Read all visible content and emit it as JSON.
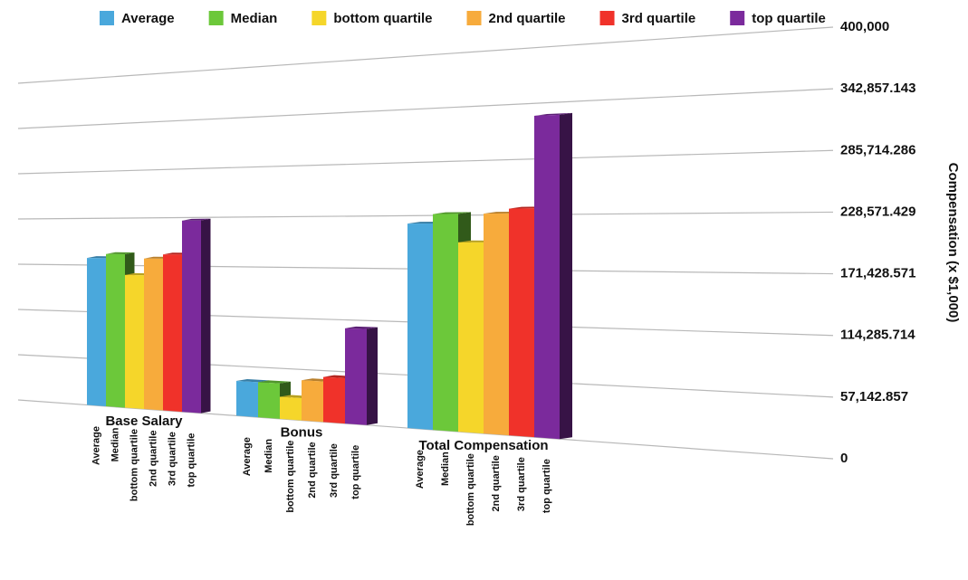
{
  "chart_data": {
    "type": "bar",
    "y_axis_label": "Compensation (x $1,000)",
    "categories": [
      "Base Salary",
      "Bonus",
      "Total Compensation"
    ],
    "series": [
      {
        "name": "Average",
        "color": "#4aa8dc",
        "values": [
          180000,
          40000,
          220000
        ]
      },
      {
        "name": "Median",
        "color": "#6cc83a",
        "values": [
          185000,
          40000,
          230000
        ]
      },
      {
        "name": "bottom quartile",
        "color": "#f5d62a",
        "values": [
          160000,
          25000,
          200000
        ]
      },
      {
        "name": "2nd quartile",
        "color": "#f7ab3c",
        "values": [
          180000,
          45000,
          230000
        ]
      },
      {
        "name": "3rd quartile",
        "color": "#f0322a",
        "values": [
          185000,
          50000,
          235000
        ]
      },
      {
        "name": "top quartile",
        "color": "#7b2a9c",
        "values": [
          225000,
          105000,
          330000
        ]
      }
    ],
    "ylim": [
      0,
      400000
    ],
    "yticks": [
      0,
      {
        "value": 57142.857,
        "label": "57,142.857"
      },
      {
        "value": 114285.714,
        "label": "114,285.714"
      },
      {
        "value": 171428.571,
        "label": "171,428.571"
      },
      {
        "value": 228571.429,
        "label": "228,571.429"
      },
      {
        "value": 285714.286,
        "label": "285,714.286"
      },
      {
        "value": 342857.143,
        "label": "342,857.143"
      },
      {
        "value": 400000,
        "label": "400,000"
      }
    ],
    "grid": true,
    "legend": "top"
  }
}
